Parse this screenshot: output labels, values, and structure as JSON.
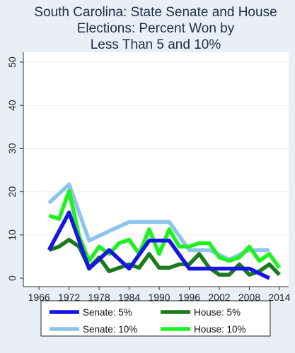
{
  "chart_data": {
    "type": "line",
    "title_lines": [
      "South Carolina: State Senate and House",
      "Elections: Percent Won by",
      "Less Than 5 and 10%"
    ],
    "xlabel": "",
    "ylabel": "",
    "xlim": [
      1964,
      2015
    ],
    "ylim": [
      0,
      50
    ],
    "xticks": [
      1966,
      1972,
      1978,
      1984,
      1990,
      1996,
      2002,
      2008,
      2014
    ],
    "yticks": [
      0,
      10,
      20,
      30,
      40,
      50
    ],
    "grid": true,
    "legend_position": "bottom",
    "series": [
      {
        "name": "Senate: 5%",
        "color": "#1515e6",
        "x": [
          1968,
          1972,
          1976,
          1980,
          1984,
          1988,
          1992,
          1996,
          2000,
          2004,
          2008,
          2012
        ],
        "y": [
          6.5,
          15.2,
          2.2,
          6.5,
          2.2,
          8.7,
          8.7,
          2.2,
          2.2,
          2.2,
          2.2,
          0
        ]
      },
      {
        "name": "House: 5%",
        "color": "#1b7a1b",
        "x": [
          1968,
          1970,
          1972,
          1974,
          1976,
          1978,
          1980,
          1982,
          1984,
          1986,
          1988,
          1990,
          1992,
          1994,
          1996,
          1998,
          2000,
          2002,
          2004,
          2006,
          2008,
          2010,
          2012,
          2014
        ],
        "y": [
          6.5,
          7.3,
          8.9,
          7.3,
          2.4,
          4.8,
          1.6,
          2.4,
          3.2,
          2.4,
          5.6,
          2.4,
          2.4,
          3.2,
          3.2,
          5.6,
          2.4,
          0.8,
          0.8,
          3.2,
          0.8,
          1.6,
          3.2,
          0.8
        ]
      },
      {
        "name": "Senate: 10%",
        "color": "#8ec4ec",
        "x": [
          1968,
          1972,
          1976,
          1980,
          1984,
          1988,
          1992,
          1996,
          2000,
          2004,
          2008,
          2012
        ],
        "y": [
          17.4,
          21.7,
          8.7,
          10.9,
          13.0,
          13.0,
          13.0,
          6.5,
          6.5,
          4.3,
          6.5,
          6.5
        ]
      },
      {
        "name": "House: 10%",
        "color": "#1ef21e",
        "x": [
          1968,
          1970,
          1972,
          1974,
          1976,
          1978,
          1980,
          1982,
          1984,
          1986,
          1988,
          1990,
          1992,
          1994,
          1996,
          1998,
          2000,
          2002,
          2004,
          2006,
          2008,
          2010,
          2012,
          2014
        ],
        "y": [
          14.5,
          13.7,
          20.2,
          9.7,
          4.0,
          7.3,
          5.6,
          8.1,
          8.9,
          5.6,
          11.3,
          5.6,
          11.3,
          7.3,
          7.3,
          8.1,
          8.1,
          4.8,
          4.0,
          4.8,
          7.3,
          4.0,
          5.6,
          2.4
        ]
      }
    ],
    "legend_order": [
      0,
      1,
      2,
      3
    ]
  }
}
